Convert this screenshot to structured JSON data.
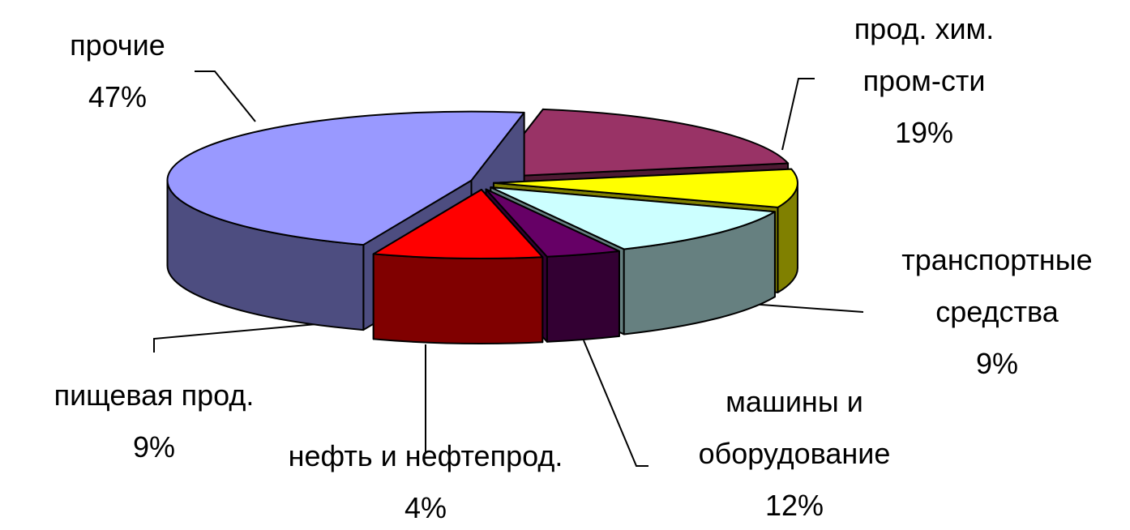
{
  "chart_data": {
    "type": "pie3d",
    "categories": [
      "прочие",
      "прод. хим.\nпром-сти",
      "транспортные\nсредства",
      "машины и\nоборудование",
      "нефть и нефтепрод.",
      "пищевая прод."
    ],
    "values": [
      47,
      19,
      9,
      12,
      4,
      9
    ],
    "value_labels": [
      "47%",
      "19%",
      "9%",
      "12%",
      "4%",
      "9%"
    ],
    "colors": [
      "#9999ff",
      "#993366",
      "#ffff00",
      "#ccffff",
      "#660066",
      "#ff0000"
    ]
  }
}
